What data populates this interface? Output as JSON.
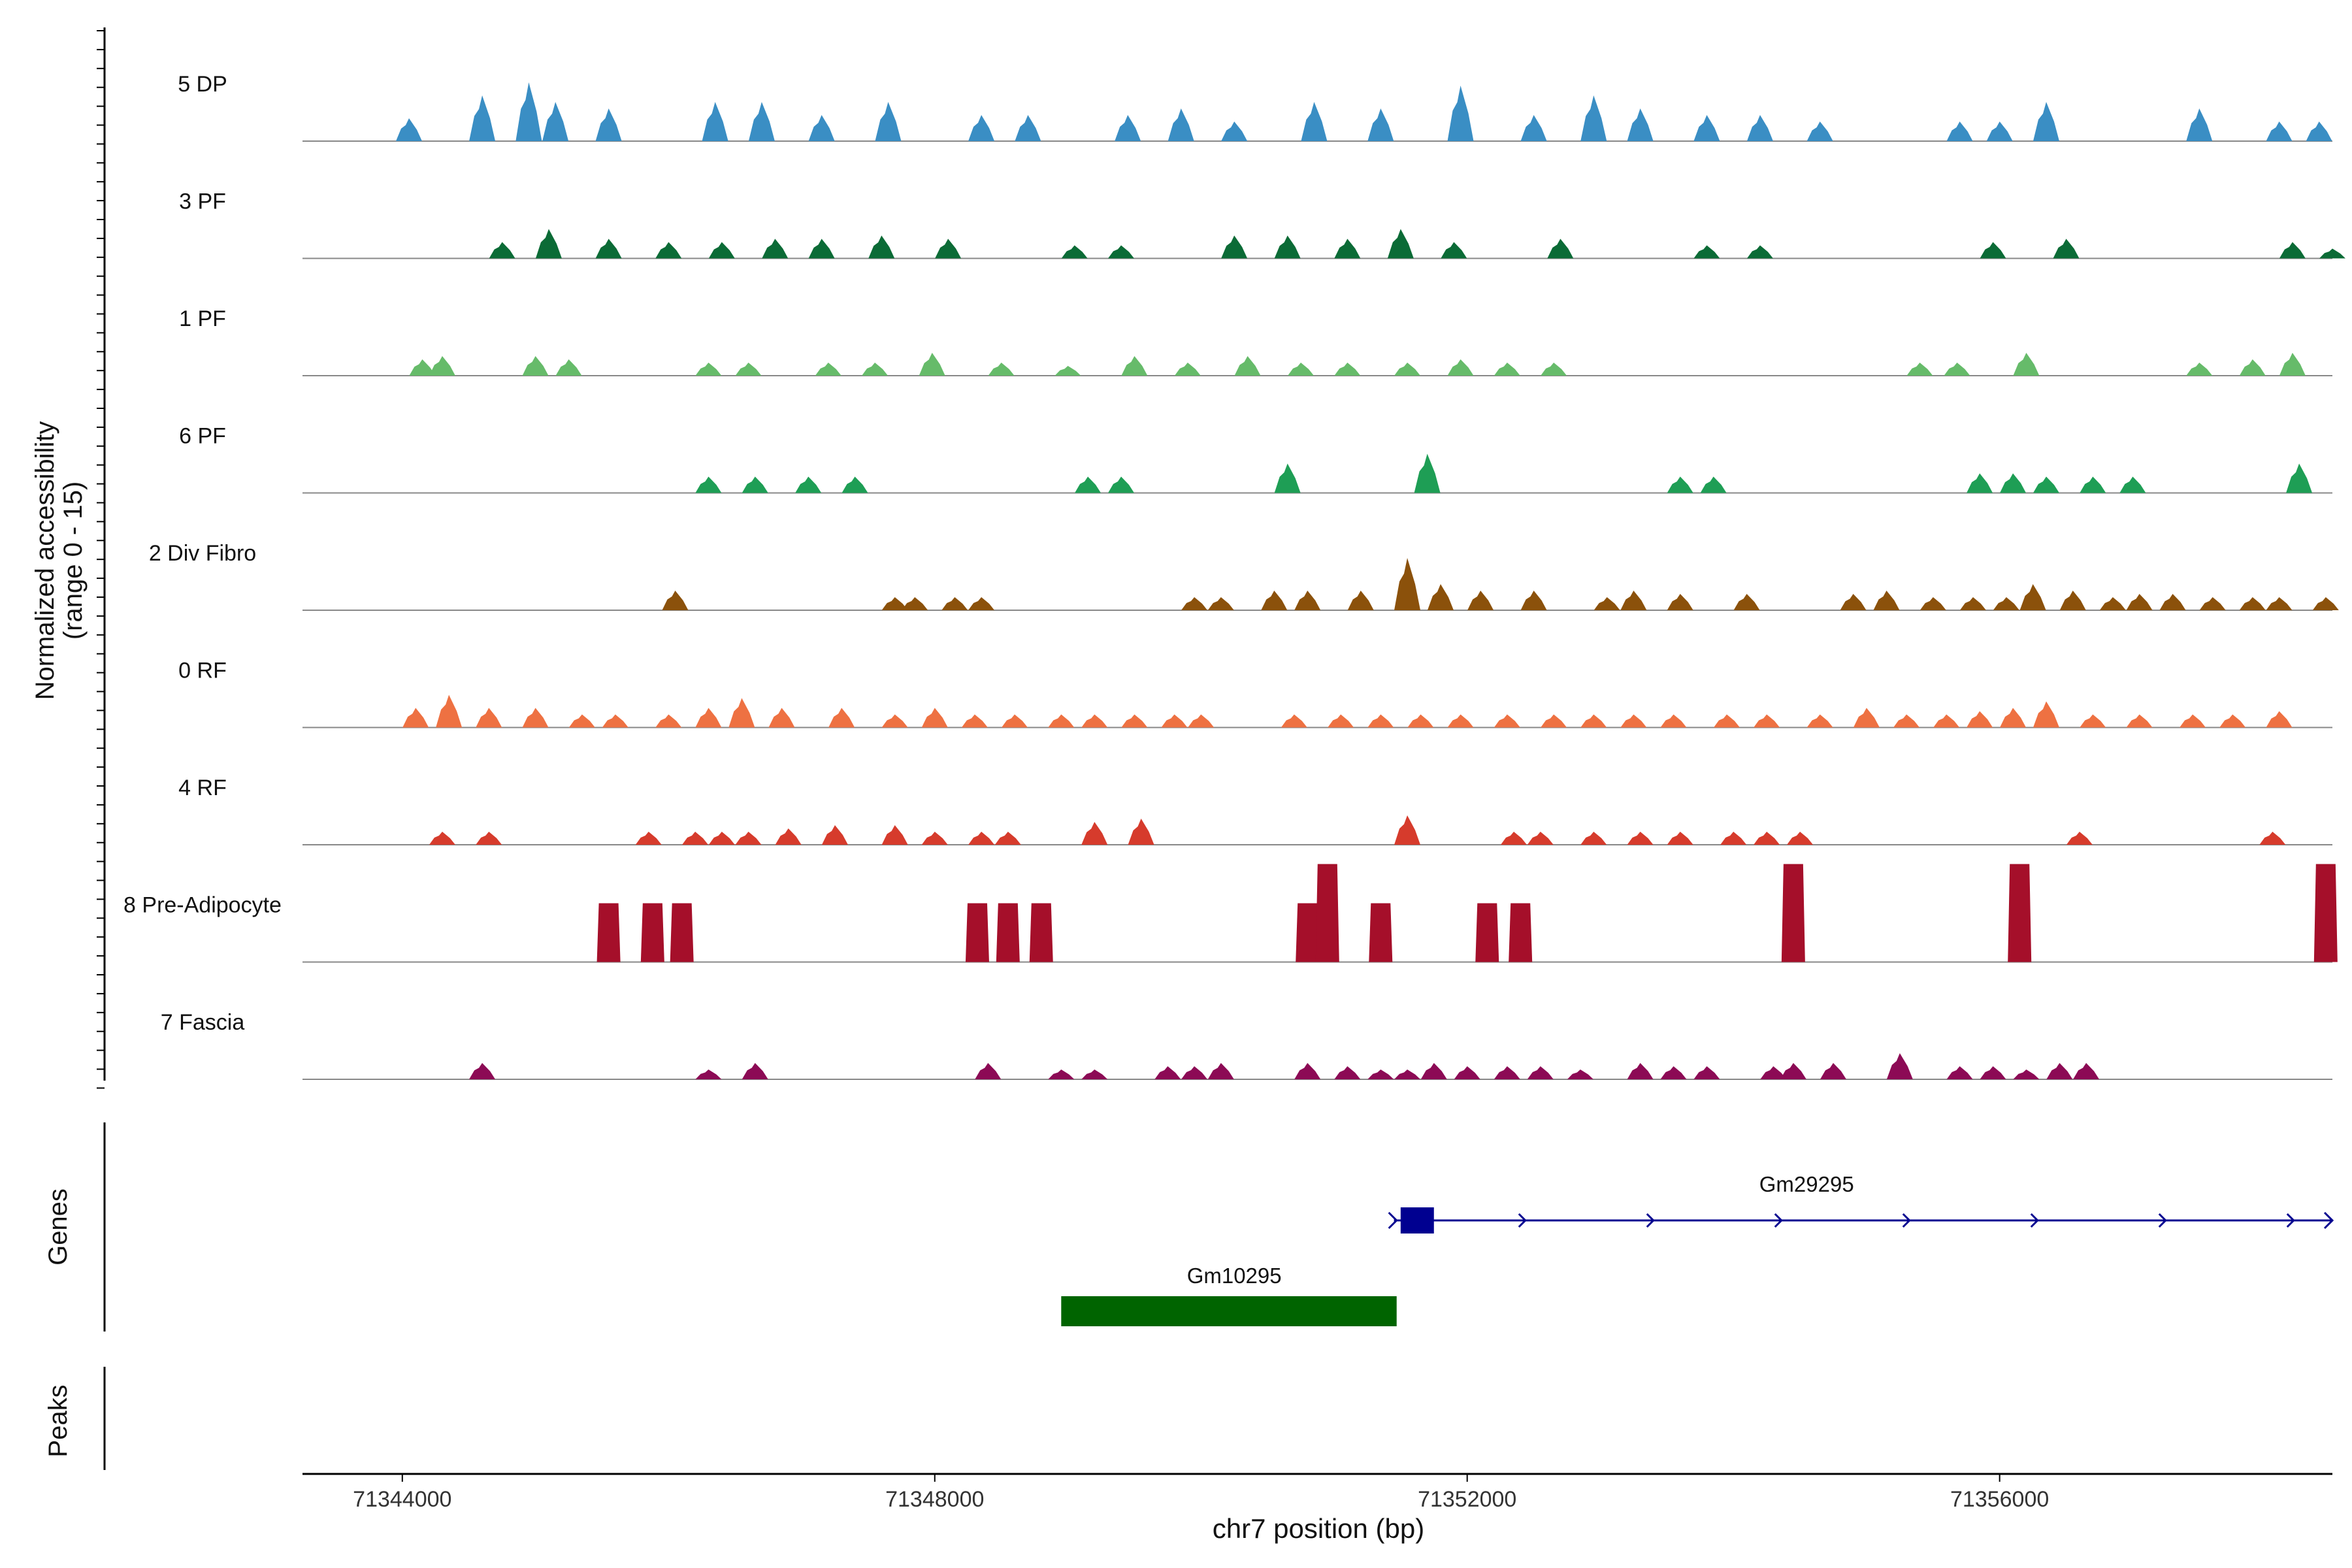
{
  "chart_data": {
    "type": "area",
    "title": "",
    "ylabel_line1": "Normalized accessibility",
    "ylabel_line2": "(range 0 - 15)",
    "xlabel": "chr7 position (bp)",
    "xlim": [
      71343250,
      71358500
    ],
    "x_ticks": [
      71344000,
      71348000,
      71352000,
      71356000
    ],
    "x_tick_labels": [
      "71344000",
      "71348000",
      "71352000",
      "71356000"
    ],
    "ylim": [
      0,
      15
    ],
    "tracks": [
      {
        "name": "5 DP",
        "color": "#3A8EC4",
        "peaks": [
          [
            71344050,
            3.5
          ],
          [
            71344600,
            7
          ],
          [
            71344950,
            9
          ],
          [
            71345150,
            6
          ],
          [
            71345550,
            5
          ],
          [
            71346350,
            6
          ],
          [
            71346700,
            6
          ],
          [
            71347150,
            4
          ],
          [
            71347650,
            6
          ],
          [
            71348350,
            4
          ],
          [
            71348700,
            4
          ],
          [
            71349450,
            4
          ],
          [
            71349850,
            5
          ],
          [
            71350250,
            3
          ],
          [
            71350850,
            6
          ],
          [
            71351350,
            5
          ],
          [
            71351950,
            8.5
          ],
          [
            71352500,
            4
          ],
          [
            71352950,
            7
          ],
          [
            71353300,
            5
          ],
          [
            71353800,
            4
          ],
          [
            71354200,
            4
          ],
          [
            71354650,
            3
          ],
          [
            71355700,
            3
          ],
          [
            71356000,
            3
          ],
          [
            71356350,
            6
          ],
          [
            71357500,
            5
          ],
          [
            71358100,
            3
          ],
          [
            71358400,
            3
          ]
        ]
      },
      {
        "name": "3 PF",
        "color": "#0B6B36",
        "peaks": [
          [
            71344750,
            2.5
          ],
          [
            71345100,
            4.5
          ],
          [
            71345550,
            3
          ],
          [
            71346000,
            2.5
          ],
          [
            71346400,
            2.5
          ],
          [
            71346800,
            3
          ],
          [
            71347150,
            3
          ],
          [
            71347600,
            3.5
          ],
          [
            71348100,
            3
          ],
          [
            71349050,
            2
          ],
          [
            71349400,
            2
          ],
          [
            71350250,
            3.5
          ],
          [
            71350650,
            3.5
          ],
          [
            71351100,
            3
          ],
          [
            71351500,
            4.5
          ],
          [
            71351900,
            2.5
          ],
          [
            71352700,
            3
          ],
          [
            71353800,
            2
          ],
          [
            71354200,
            2
          ],
          [
            71355950,
            2.5
          ],
          [
            71356500,
            3
          ],
          [
            71358200,
            2.5
          ],
          [
            71358500,
            1.5
          ]
        ]
      },
      {
        "name": "1 PF",
        "color": "#66BB6A",
        "peaks": [
          [
            71344150,
            2.5
          ],
          [
            71344300,
            3
          ],
          [
            71345000,
            3
          ],
          [
            71345250,
            2.5
          ],
          [
            71346300,
            2
          ],
          [
            71346600,
            2
          ],
          [
            71347200,
            2
          ],
          [
            71347550,
            2
          ],
          [
            71347980,
            3.5
          ],
          [
            71348500,
            2
          ],
          [
            71349000,
            1.5
          ],
          [
            71349500,
            3
          ],
          [
            71349900,
            2
          ],
          [
            71350350,
            3
          ],
          [
            71350750,
            2
          ],
          [
            71351100,
            2
          ],
          [
            71351550,
            2
          ],
          [
            71351950,
            2.5
          ],
          [
            71352300,
            2
          ],
          [
            71352650,
            2
          ],
          [
            71355400,
            2
          ],
          [
            71355680,
            2
          ],
          [
            71356200,
            3.5
          ],
          [
            71357500,
            2
          ],
          [
            71357900,
            2.5
          ],
          [
            71358200,
            3.5
          ]
        ]
      },
      {
        "name": "6 PF",
        "color": "#1E9E55",
        "peaks": [
          [
            71346300,
            2.5
          ],
          [
            71346650,
            2.5
          ],
          [
            71347050,
            2.5
          ],
          [
            71347400,
            2.5
          ],
          [
            71349150,
            2.5
          ],
          [
            71349400,
            2.5
          ],
          [
            71350650,
            4.5
          ],
          [
            71351700,
            6
          ],
          [
            71353600,
            2.5
          ],
          [
            71353850,
            2.5
          ],
          [
            71355850,
            3
          ],
          [
            71356100,
            3
          ],
          [
            71356350,
            2.5
          ],
          [
            71356700,
            2.5
          ],
          [
            71357000,
            2.5
          ],
          [
            71358250,
            4.5
          ]
        ]
      },
      {
        "name": "2 Div Fibro",
        "color": "#8B510B",
        "peaks": [
          [
            71346050,
            3
          ],
          [
            71347700,
            2
          ],
          [
            71347850,
            2
          ],
          [
            71348150,
            2
          ],
          [
            71348350,
            2
          ],
          [
            71349950,
            2
          ],
          [
            71350150,
            2
          ],
          [
            71350550,
            3
          ],
          [
            71350800,
            3
          ],
          [
            71351200,
            3
          ],
          [
            71351550,
            8
          ],
          [
            71351800,
            4
          ],
          [
            71352100,
            3
          ],
          [
            71352500,
            3
          ],
          [
            71353050,
            2
          ],
          [
            71353250,
            3
          ],
          [
            71353600,
            2.5
          ],
          [
            71354100,
            2.5
          ],
          [
            71354900,
            2.5
          ],
          [
            71355150,
            3
          ],
          [
            71355500,
            2
          ],
          [
            71355800,
            2
          ],
          [
            71356050,
            2
          ],
          [
            71356250,
            4
          ],
          [
            71356550,
            3
          ],
          [
            71356850,
            2
          ],
          [
            71357050,
            2.5
          ],
          [
            71357300,
            2.5
          ],
          [
            71357600,
            2
          ],
          [
            71357900,
            2
          ],
          [
            71358100,
            2
          ],
          [
            71358450,
            2
          ]
        ]
      },
      {
        "name": "0 RF",
        "color": "#EE7142",
        "peaks": [
          [
            71344100,
            3
          ],
          [
            71344350,
            5
          ],
          [
            71344650,
            3
          ],
          [
            71345000,
            3
          ],
          [
            71345350,
            2
          ],
          [
            71345600,
            2
          ],
          [
            71346000,
            2
          ],
          [
            71346300,
            3
          ],
          [
            71346550,
            4.5
          ],
          [
            71346850,
            3
          ],
          [
            71347300,
            3
          ],
          [
            71347700,
            2
          ],
          [
            71348000,
            3
          ],
          [
            71348300,
            2
          ],
          [
            71348600,
            2
          ],
          [
            71348950,
            2
          ],
          [
            71349200,
            2
          ],
          [
            71349500,
            2
          ],
          [
            71349800,
            2
          ],
          [
            71350000,
            2
          ],
          [
            71350700,
            2
          ],
          [
            71351050,
            2
          ],
          [
            71351350,
            2
          ],
          [
            71351650,
            2
          ],
          [
            71351950,
            2
          ],
          [
            71352300,
            2
          ],
          [
            71352650,
            2
          ],
          [
            71352950,
            2
          ],
          [
            71353250,
            2
          ],
          [
            71353550,
            2
          ],
          [
            71353950,
            2
          ],
          [
            71354250,
            2
          ],
          [
            71354650,
            2
          ],
          [
            71355000,
            3
          ],
          [
            71355300,
            2
          ],
          [
            71355600,
            2
          ],
          [
            71355850,
            2.5
          ],
          [
            71356100,
            3
          ],
          [
            71356350,
            4
          ],
          [
            71356700,
            2
          ],
          [
            71357050,
            2
          ],
          [
            71357450,
            2
          ],
          [
            71357750,
            2
          ],
          [
            71358100,
            2.5
          ]
        ]
      },
      {
        "name": "4 RF",
        "color": "#D63B2C",
        "peaks": [
          [
            71344300,
            2
          ],
          [
            71344650,
            2
          ],
          [
            71345850,
            2
          ],
          [
            71346200,
            2
          ],
          [
            71346400,
            2
          ],
          [
            71346600,
            2
          ],
          [
            71346900,
            2.5
          ],
          [
            71347250,
            3
          ],
          [
            71347700,
            3
          ],
          [
            71348000,
            2
          ],
          [
            71348350,
            2
          ],
          [
            71348550,
            2
          ],
          [
            71349200,
            3.5
          ],
          [
            71349550,
            4
          ],
          [
            71351550,
            4.5
          ],
          [
            71352350,
            2
          ],
          [
            71352550,
            2
          ],
          [
            71352950,
            2
          ],
          [
            71353300,
            2
          ],
          [
            71353600,
            2
          ],
          [
            71354000,
            2
          ],
          [
            71354250,
            2
          ],
          [
            71354500,
            2
          ],
          [
            71356600,
            2
          ],
          [
            71358050,
            2
          ]
        ]
      },
      {
        "name": "8 Pre-Adipocyte",
        "color": "#A50F2A",
        "peaks": [
          [
            71345550,
            9
          ],
          [
            71345880,
            9
          ],
          [
            71346100,
            9
          ],
          [
            71348320,
            9
          ],
          [
            71348550,
            9
          ],
          [
            71348800,
            9
          ],
          [
            71350800,
            9
          ],
          [
            71350950,
            15
          ],
          [
            71351350,
            9
          ],
          [
            71352150,
            9
          ],
          [
            71352400,
            9
          ],
          [
            71354450,
            15
          ],
          [
            71356150,
            15
          ],
          [
            71358450,
            15
          ]
        ]
      },
      {
        "name": "7 Fascia",
        "color": "#8C0A55",
        "peaks": [
          [
            71344600,
            2.5
          ],
          [
            71346300,
            1.5
          ],
          [
            71346650,
            2.5
          ],
          [
            71348400,
            2.5
          ],
          [
            71348950,
            1.5
          ],
          [
            71349200,
            1.5
          ],
          [
            71349750,
            2
          ],
          [
            71349950,
            2
          ],
          [
            71350150,
            2.5
          ],
          [
            71350800,
            2.5
          ],
          [
            71351100,
            2
          ],
          [
            71351350,
            1.5
          ],
          [
            71351550,
            1.5
          ],
          [
            71351750,
            2.5
          ],
          [
            71352000,
            2
          ],
          [
            71352300,
            2
          ],
          [
            71352550,
            2
          ],
          [
            71352850,
            1.5
          ],
          [
            71353300,
            2.5
          ],
          [
            71353550,
            2
          ],
          [
            71353800,
            2
          ],
          [
            71354300,
            2
          ],
          [
            71354450,
            2.5
          ],
          [
            71354750,
            2.5
          ],
          [
            71355250,
            4
          ],
          [
            71355700,
            2
          ],
          [
            71355950,
            2
          ],
          [
            71356200,
            1.5
          ],
          [
            71356450,
            2.5
          ],
          [
            71356650,
            2.5
          ]
        ]
      }
    ],
    "genes": [
      {
        "name": "Gm29295",
        "color": "#000090",
        "start": 71351450,
        "end": 71358500,
        "strand": "+",
        "exon": [
          71351500,
          71351750
        ]
      },
      {
        "name": "Gm10295",
        "color": "#006400",
        "start": 71348950,
        "end": 71351470,
        "strand": "",
        "exon": [
          71348950,
          71351470
        ]
      }
    ],
    "panel_labels": {
      "genes": "Genes",
      "peaks": "Peaks"
    }
  }
}
